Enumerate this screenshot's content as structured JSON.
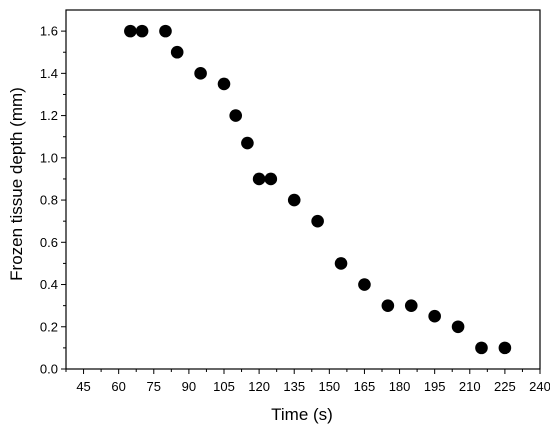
{
  "chart_data": {
    "type": "scatter",
    "xlabel": "Time (s)",
    "ylabel": "Frozen tissue depth (mm)",
    "xlim": [
      37.5,
      240
    ],
    "ylim": [
      0,
      1.7
    ],
    "xticks": [
      45,
      60,
      75,
      90,
      105,
      120,
      135,
      150,
      165,
      180,
      195,
      210,
      225,
      240
    ],
    "yticks": [
      0.0,
      0.2,
      0.4,
      0.6,
      0.8,
      1.0,
      1.2,
      1.4,
      1.6
    ],
    "ytick_labels": [
      "0.0",
      "0.2",
      "0.4",
      "0.6",
      "0.8",
      "1.0",
      "1.2",
      "1.4",
      "1.6"
    ],
    "grid": false,
    "marker_color": "#000000",
    "series": [
      {
        "x": [
          65,
          70,
          80,
          85,
          95,
          105,
          110,
          115,
          120,
          125,
          135,
          145,
          155,
          165,
          175,
          185,
          195,
          205,
          215,
          225
        ],
        "y": [
          1.6,
          1.6,
          1.6,
          1.5,
          1.4,
          1.35,
          1.2,
          1.07,
          0.9,
          0.9,
          0.8,
          0.7,
          0.5,
          0.4,
          0.3,
          0.3,
          0.25,
          0.2,
          0.1,
          0.1
        ]
      }
    ]
  }
}
